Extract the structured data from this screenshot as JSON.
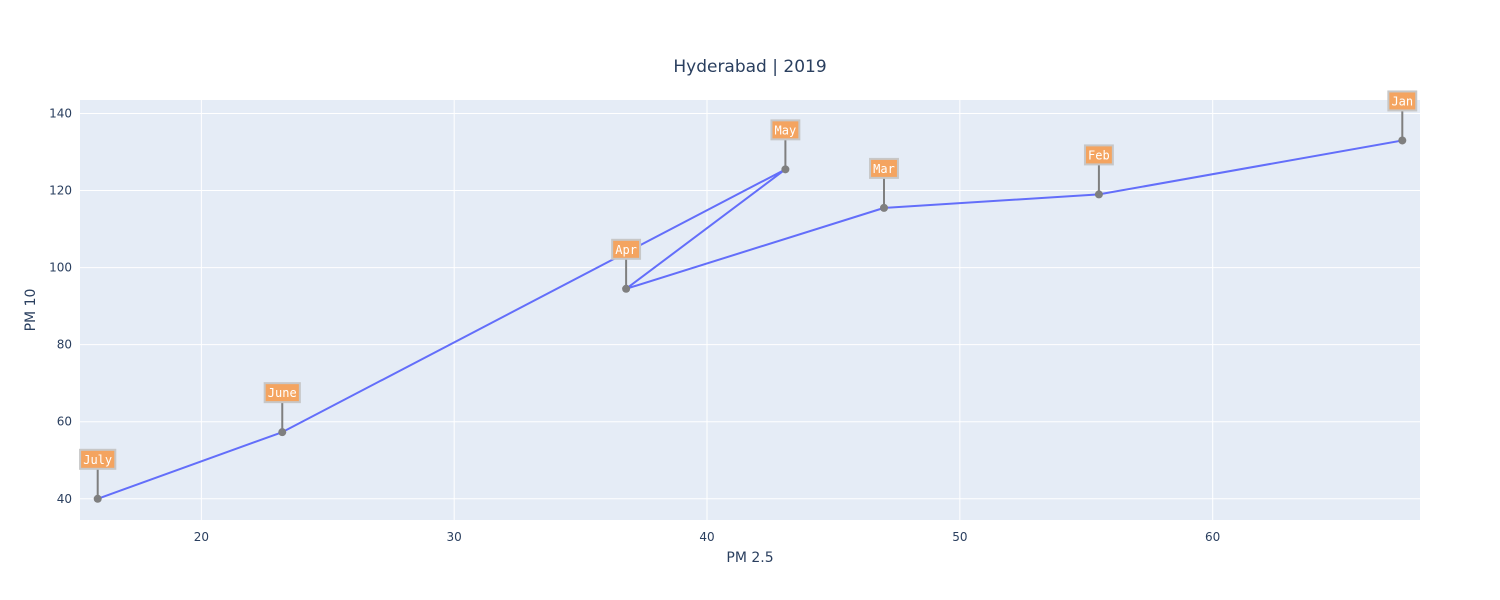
{
  "colors": {
    "plot_bg": "#e5ecf6",
    "grid": "#ffffff",
    "line": "#636efa",
    "marker": "#7f7f7f",
    "annotation_bg": "#f4a460",
    "annotation_border": "#c7c7c7",
    "annotation_arrow": "#7f7f7f"
  },
  "chart_data": {
    "type": "line",
    "title": "Hyderabad | 2019",
    "xlabel": "PM 2.5",
    "ylabel": "PM 10",
    "xlim": [
      15.2,
      68.2
    ],
    "ylim": [
      34.5,
      143.5
    ],
    "grid": true,
    "x_ticks": [
      20,
      30,
      40,
      50,
      60
    ],
    "y_ticks": [
      40,
      60,
      80,
      100,
      120,
      140
    ],
    "series": [
      {
        "x": [
          67.5,
          55.5,
          47.0,
          36.8,
          43.1,
          23.2,
          15.9
        ],
        "y": [
          133.0,
          119.0,
          115.5,
          94.5,
          125.5,
          57.3,
          40.0
        ],
        "labels": [
          "Jan",
          "Feb",
          "Mar",
          "Apr",
          "May",
          "June",
          "July"
        ]
      }
    ]
  }
}
